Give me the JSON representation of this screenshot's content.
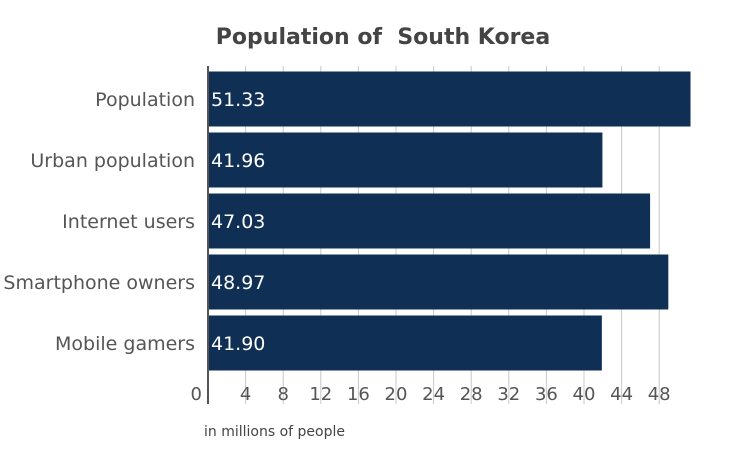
{
  "chart_data": {
    "type": "bar",
    "orientation": "horizontal",
    "title": "Population of  South Korea",
    "xlabel": "in millions of people",
    "ylabel": "",
    "categories": [
      "Population",
      "Urban population",
      "Internet users",
      "Smartphone owners",
      "Mobile gamers"
    ],
    "values": [
      51.33,
      41.96,
      47.03,
      48.97,
      41.9
    ],
    "value_labels": [
      "51.33",
      "41.96",
      "47.03",
      "48.97",
      "41.90"
    ],
    "xlim": [
      0,
      51.33
    ],
    "xticks": [
      0,
      4,
      8,
      12,
      16,
      20,
      24,
      28,
      32,
      36,
      40,
      44,
      48
    ],
    "grid": true,
    "bar_color": "#0f2f55"
  }
}
